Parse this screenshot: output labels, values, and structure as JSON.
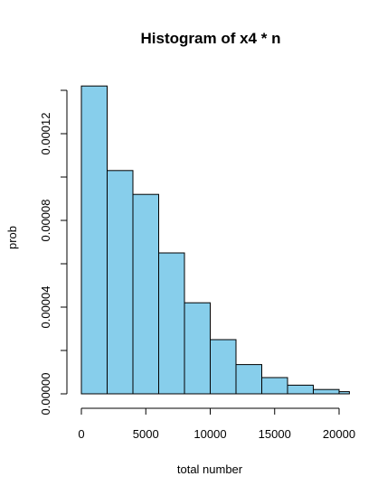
{
  "chart_data": {
    "type": "bar",
    "subtype": "histogram",
    "title": "Histogram of x4 * n",
    "xlabel": "total number",
    "ylabel": "prob",
    "bin_edges": [
      0,
      2000,
      4000,
      6000,
      8000,
      10000,
      12000,
      14000,
      16000,
      18000,
      20000,
      20800
    ],
    "values": [
      0.000142,
      0.000103,
      9.2e-05,
      6.5e-05,
      4.2e-05,
      2.5e-05,
      1.35e-05,
      7.5e-06,
      4e-06,
      2e-06,
      1e-06
    ],
    "xlim": [
      0,
      20800
    ],
    "ylim": [
      0,
      0.00014
    ],
    "x_ticks": [
      {
        "value": 0,
        "label": "0"
      },
      {
        "value": 5000,
        "label": "5000"
      },
      {
        "value": 10000,
        "label": "10000"
      },
      {
        "value": 15000,
        "label": "15000"
      },
      {
        "value": 20000,
        "label": "20000"
      }
    ],
    "y_ticks": [
      {
        "value": 0,
        "label": "0.00000"
      },
      {
        "value": 2e-05,
        "label": ""
      },
      {
        "value": 4e-05,
        "label": "0.00004"
      },
      {
        "value": 6e-05,
        "label": ""
      },
      {
        "value": 8e-05,
        "label": "0.00008"
      },
      {
        "value": 0.0001,
        "label": ""
      },
      {
        "value": 0.00012,
        "label": "0.00012"
      },
      {
        "value": 0.00014,
        "label": ""
      }
    ],
    "bar_color": "#87CEEB",
    "grid": false
  }
}
